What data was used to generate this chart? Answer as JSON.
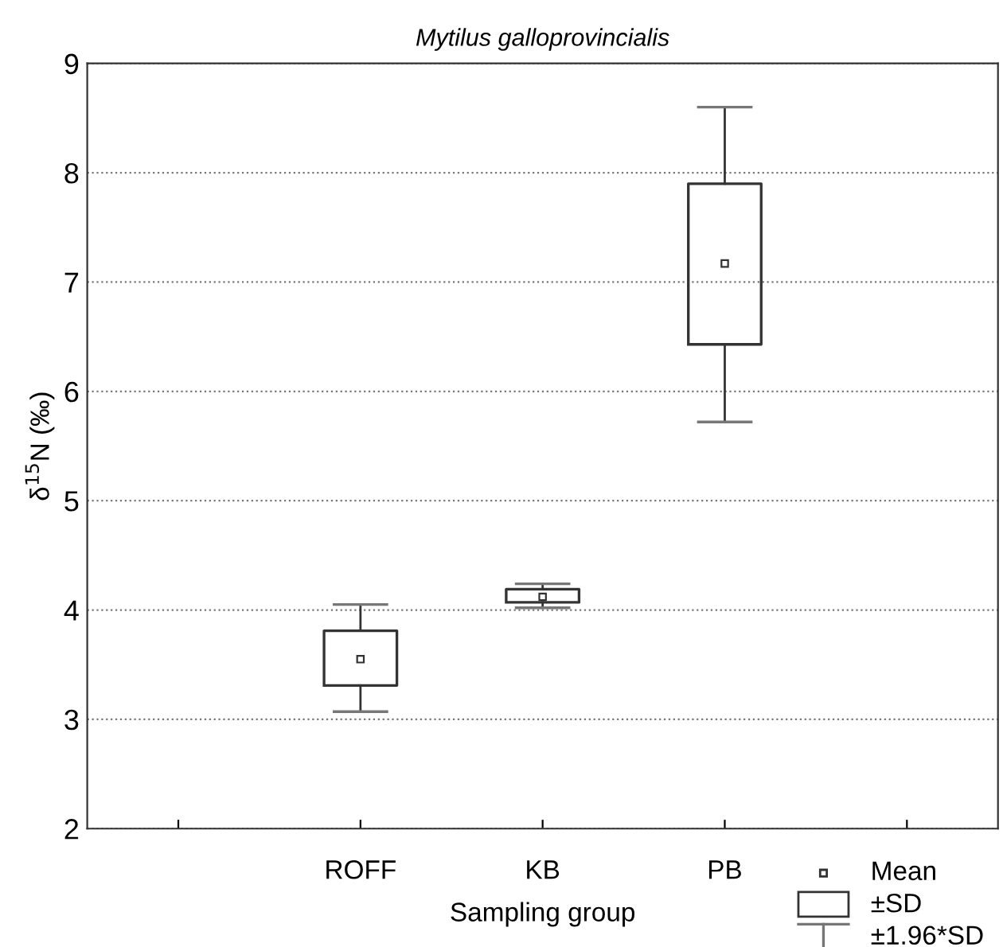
{
  "chart_data": {
    "type": "box",
    "title": "Mytilus galloprovincialis",
    "xlabel": "Sampling group",
    "ylabel": "δ$^{15}$N (‰)",
    "categories": [
      null,
      "ROFF",
      "KB",
      "PB",
      null
    ],
    "boxes": [
      null,
      {
        "low": 3.07,
        "q1": 3.31,
        "median": 3.55,
        "q3": 3.81,
        "high": 4.05
      },
      {
        "low": 4.02,
        "q1": 4.07,
        "median": 4.12,
        "q3": 4.19,
        "high": 4.24
      },
      {
        "low": 5.72,
        "q1": 6.43,
        "median": 7.17,
        "q3": 7.9,
        "high": 8.6
      },
      null
    ],
    "ylim": [
      2,
      9
    ],
    "yticks": [
      2,
      3,
      4,
      5,
      6,
      7,
      8,
      9
    ],
    "grid": "y",
    "annotations": [
      "Mean",
      "±SD",
      "±1.96*SD"
    ]
  }
}
